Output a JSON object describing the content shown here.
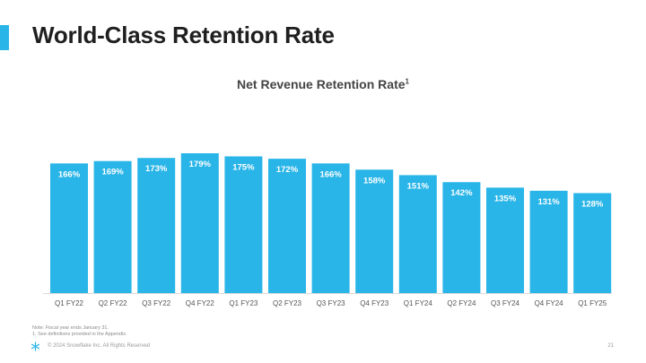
{
  "slide": {
    "title": "World-Class Retention Rate",
    "notes": [
      "Note: Fiscal year ends January 31.",
      "1.  See definitions provided in the Appendix."
    ],
    "copyright": "© 2024 Snowflake Inc. All Rights Reserved",
    "page_number": "21",
    "accent_color": "#29b5e8",
    "logo_icon": "snowflake-icon"
  },
  "chart_data": {
    "type": "bar",
    "title": "Net Revenue Retention Rate",
    "title_superscript": "1",
    "xlabel": "",
    "ylabel": "",
    "ylim": [
      0,
      179
    ],
    "bar_color": "#29b5e8",
    "label_color": "#ffffff",
    "categories": [
      "Q1 FY22",
      "Q2 FY22",
      "Q3 FY22",
      "Q4 FY22",
      "Q1 FY23",
      "Q2 FY23",
      "Q3 FY23",
      "Q4 FY23",
      "Q1 FY24",
      "Q2 FY24",
      "Q3 FY24",
      "Q4 FY24",
      "Q1 FY25"
    ],
    "values": [
      166,
      169,
      173,
      179,
      175,
      172,
      166,
      158,
      151,
      142,
      135,
      131,
      128
    ],
    "value_labels": [
      "166%",
      "169%",
      "173%",
      "179%",
      "175%",
      "172%",
      "166%",
      "158%",
      "151%",
      "142%",
      "135%",
      "131%",
      "128%"
    ]
  }
}
